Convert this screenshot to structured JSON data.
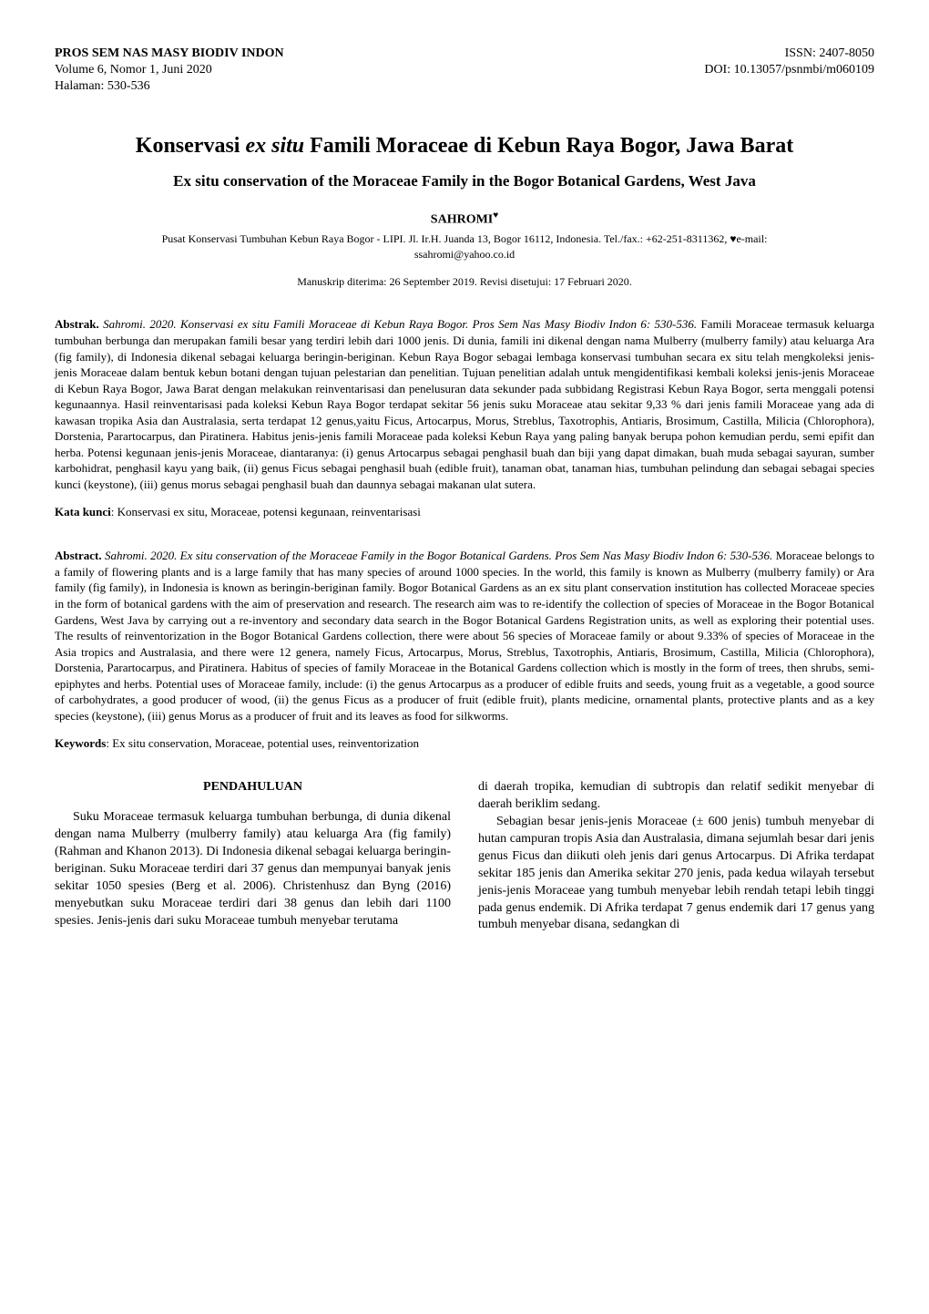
{
  "header": {
    "journal_name": "PROS SEM NAS MASY BIODIV INDON",
    "volume_info": "Volume 6, Nomor 1, Juni 2020",
    "page_info": "Halaman: 530-536",
    "issn": "ISSN: 2407-8050",
    "doi": "DOI: 10.13057/psnmbi/m060109"
  },
  "title": {
    "main_pre": "Konservasi ",
    "main_italic": "ex situ",
    "main_post": " Famili Moraceae di Kebun Raya Bogor, Jawa Barat",
    "sub": "Ex situ conservation of the Moraceae Family in the Bogor Botanical Gardens, West Java"
  },
  "author": {
    "name": "SAHROMI",
    "corresponding_mark": "♥",
    "affiliation": "Pusat Konservasi Tumbuhan Kebun Raya Bogor - LIPI. Jl. Ir.H. Juanda 13, Bogor 16112, Indonesia. Tel./fax.: +62-251-8311362, ♥e-mail:",
    "email": "ssahromi@yahoo.co.id"
  },
  "dates": "Manuskrip diterima: 26 September 2019. Revisi disetujui: 17 Februari 2020.",
  "abstrak": {
    "label": "Abstrak.",
    "citation": " Sahromi. 2020. Konservasi ex situ Famili Moraceae di Kebun Raya Bogor. Pros Sem Nas Masy Biodiv Indon 6: 530-536.",
    "body": " Famili Moraceae termasuk keluarga tumbuhan berbunga dan merupakan famili besar yang terdiri lebih dari 1000 jenis. Di dunia, famili ini dikenal dengan nama Mulberry (mulberry family) atau keluarga Ara (fig family), di Indonesia dikenal sebagai keluarga beringin-beriginan. Kebun Raya Bogor sebagai lembaga konservasi tumbuhan secara ex situ telah mengkoleksi jenis-jenis Moraceae dalam bentuk kebun botani dengan tujuan pelestarian dan penelitian. Tujuan penelitian adalah untuk mengidentifikasi kembali koleksi jenis-jenis Moraceae di Kebun Raya Bogor, Jawa Barat dengan melakukan reinventarisasi dan penelusuran data sekunder pada subbidang Registrasi Kebun Raya Bogor, serta menggali potensi kegunaannya. Hasil reinventarisasi pada koleksi Kebun Raya Bogor terdapat sekitar 56 jenis suku Moraceae atau sekitar 9,33 % dari jenis famili Moraceae yang ada di kawasan tropika Asia dan Australasia, serta terdapat 12 genus,yaitu Ficus, Artocarpus, Morus, Streblus, Taxotrophis, Antiaris, Brosimum, Castilla, Milicia (Chlorophora), Dorstenia, Parartocarpus, dan Piratinera. Habitus jenis-jenis famili Moraceae pada koleksi Kebun Raya yang paling banyak berupa pohon kemudian perdu, semi epifit dan herba. Potensi kegunaan jenis-jenis Moraceae, diantaranya: (i) genus Artocarpus sebagai penghasil buah dan biji yang dapat dimakan, buah muda sebagai sayuran, sumber karbohidrat, penghasil kayu yang baik, (ii) genus Ficus sebagai penghasil buah (edible fruit), tanaman obat, tanaman hias, tumbuhan pelindung dan sebagai sebagai species kunci (keystone), (iii) genus morus sebagai penghasil buah dan daunnya sebagai makanan ulat sutera."
  },
  "kata_kunci": {
    "label": "Kata kunci",
    "text": ": Konservasi ex situ, Moraceae, potensi kegunaan, reinventarisasi"
  },
  "abstract": {
    "label": "Abstract.",
    "citation": " Sahromi. 2020. Ex situ conservation of the Moraceae Family in the Bogor Botanical Gardens. Pros Sem Nas Masy Biodiv Indon 6: 530-536.",
    "body": " Moraceae belongs to a family of flowering plants and is a large family that has many species of around 1000 species. In the world, this family is known as Mulberry (mulberry family) or Ara family (fig family), in Indonesia is known as beringin-beriginan family. Bogor Botanical Gardens as an ex situ plant conservation institution has collected Moraceae species in the form of botanical gardens with the aim of preservation and research. The research aim was to re-identify the collection of species of Moraceae in the Bogor Botanical Gardens, West Java by carrying out a re-inventory and secondary data search in the Bogor Botanical Gardens Registration units, as well as exploring their potential uses. The results of reinventorization in the Bogor Botanical Gardens collection, there were about 56 species of Moraceae family or about 9.33% of species of Moraceae in the Asia tropics and Australasia, and there were 12 genera, namely Ficus, Artocarpus, Morus, Streblus, Taxotrophis, Antiaris, Brosimum, Castilla, Milicia (Chlorophora), Dorstenia, Parartocarpus, and Piratinera. Habitus of species of family Moraceae in the Botanical Gardens collection which is mostly in the form of trees, then shrubs, semi-epiphytes and herbs. Potential uses of Moraceae family, include: (i) the genus Artocarpus as a producer of edible fruits and seeds, young fruit as a vegetable, a good source of carbohydrates, a good producer of wood, (ii) the genus Ficus as a producer of fruit (edible fruit), plants medicine, ornamental plants, protective plants and as a key species (keystone), (iii) genus Morus as a producer of fruit and its leaves as food for silkworms."
  },
  "keywords": {
    "label": "Keywords",
    "text": ": Ex situ conservation, Moraceae, potential uses, reinventorization"
  },
  "section": {
    "pendahuluan": "PENDAHULUAN"
  },
  "body": {
    "col1_p1": "Suku Moraceae termasuk keluarga tumbuhan berbunga, di dunia dikenal dengan nama Mulberry (mulberry family) atau keluarga Ara (fig family) (Rahman and Khanon 2013). Di Indonesia dikenal sebagai keluarga beringin-beriginan. Suku Moraceae terdiri dari 37 genus dan mempunyai banyak jenis sekitar 1050 spesies (Berg et al. 2006). Christenhusz dan Byng (2016) menyebutkan suku Moraceae terdiri dari 38 genus dan lebih dari 1100 spesies. Jenis-jenis dari suku Moraceae tumbuh menyebar terutama",
    "col2_p1": "di daerah tropika, kemudian di subtropis dan relatif sedikit menyebar di daerah beriklim sedang.",
    "col2_p2": "Sebagian besar jenis-jenis Moraceae (± 600 jenis) tumbuh menyebar di hutan campuran tropis Asia dan Australasia, dimana sejumlah besar dari jenis genus Ficus dan diikuti oleh jenis dari genus Artocarpus. Di Afrika terdapat sekitar 185 jenis dan Amerika sekitar 270 jenis, pada kedua wilayah tersebut jenis-jenis Moraceae yang tumbuh menyebar lebih rendah tetapi lebih tinggi pada genus endemik. Di Afrika terdapat 7 genus endemik dari 17 genus yang tumbuh menyebar disana, sedangkan di"
  }
}
